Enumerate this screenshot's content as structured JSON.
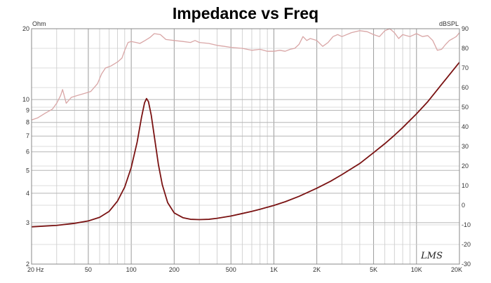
{
  "chart_data": {
    "type": "line",
    "title": "Impedance vs Freq",
    "left_axis": {
      "unit_label": "Ohm",
      "scale": "log",
      "range": [
        2,
        20
      ],
      "ticks": [
        {
          "value": 2,
          "label": "2"
        },
        {
          "value": 3,
          "label": "3"
        },
        {
          "value": 4,
          "label": "4"
        },
        {
          "value": 5,
          "label": "5"
        },
        {
          "value": 6,
          "label": "6"
        },
        {
          "value": 7,
          "label": "7"
        },
        {
          "value": 8,
          "label": "8"
        },
        {
          "value": 9,
          "label": "9"
        },
        {
          "value": 10,
          "label": "10"
        },
        {
          "value": 20,
          "label": "20"
        }
      ]
    },
    "right_axis": {
      "unit_label": "dBSPL",
      "scale": "linear",
      "range": [
        -30,
        90
      ],
      "ticks": [
        {
          "value": -30,
          "label": "-30"
        },
        {
          "value": -20,
          "label": "-20"
        },
        {
          "value": -10,
          "label": "-10"
        },
        {
          "value": 0,
          "label": "0"
        },
        {
          "value": 10,
          "label": "10"
        },
        {
          "value": 20,
          "label": "20"
        },
        {
          "value": 30,
          "label": "30"
        },
        {
          "value": 40,
          "label": "40"
        },
        {
          "value": 50,
          "label": "50"
        },
        {
          "value": 60,
          "label": "60"
        },
        {
          "value": 70,
          "label": "70"
        },
        {
          "value": 80,
          "label": "80"
        },
        {
          "value": 90,
          "label": "90"
        }
      ]
    },
    "x_axis": {
      "scale": "log",
      "range": [
        20,
        20000
      ],
      "ticks": [
        {
          "value": 20,
          "label": "20  Hz"
        },
        {
          "value": 50,
          "label": "50"
        },
        {
          "value": 100,
          "label": "100"
        },
        {
          "value": 200,
          "label": "200"
        },
        {
          "value": 500,
          "label": "500"
        },
        {
          "value": 1000,
          "label": "1K"
        },
        {
          "value": 2000,
          "label": "2K"
        },
        {
          "value": 5000,
          "label": "5K"
        },
        {
          "value": 10000,
          "label": "10K"
        },
        {
          "value": 20000,
          "label": "20K"
        }
      ]
    },
    "grid": true,
    "series": [
      {
        "axis": "left",
        "color": "#7a1212",
        "points": [
          [
            20,
            2.88
          ],
          [
            30,
            2.92
          ],
          [
            40,
            2.98
          ],
          [
            50,
            3.05
          ],
          [
            60,
            3.16
          ],
          [
            70,
            3.35
          ],
          [
            80,
            3.7
          ],
          [
            90,
            4.25
          ],
          [
            100,
            5.15
          ],
          [
            110,
            6.6
          ],
          [
            118,
            8.4
          ],
          [
            124,
            9.7
          ],
          [
            128,
            10.1
          ],
          [
            132,
            9.8
          ],
          [
            138,
            8.6
          ],
          [
            145,
            7.0
          ],
          [
            155,
            5.3
          ],
          [
            165,
            4.35
          ],
          [
            180,
            3.65
          ],
          [
            200,
            3.3
          ],
          [
            230,
            3.15
          ],
          [
            260,
            3.1
          ],
          [
            300,
            3.09
          ],
          [
            350,
            3.1
          ],
          [
            400,
            3.13
          ],
          [
            500,
            3.2
          ],
          [
            600,
            3.28
          ],
          [
            700,
            3.35
          ],
          [
            800,
            3.42
          ],
          [
            1000,
            3.55
          ],
          [
            1200,
            3.68
          ],
          [
            1500,
            3.88
          ],
          [
            2000,
            4.2
          ],
          [
            2500,
            4.5
          ],
          [
            3000,
            4.8
          ],
          [
            4000,
            5.35
          ],
          [
            5000,
            5.95
          ],
          [
            6000,
            6.5
          ],
          [
            7000,
            7.05
          ],
          [
            8000,
            7.6
          ],
          [
            10000,
            8.7
          ],
          [
            12000,
            9.8
          ],
          [
            15000,
            11.6
          ],
          [
            20000,
            14.4
          ]
        ]
      },
      {
        "axis": "right",
        "color": "#d9a6a6",
        "points": [
          [
            20,
            43.5
          ],
          [
            22,
            44.5
          ],
          [
            25,
            47
          ],
          [
            28,
            49
          ],
          [
            30,
            52
          ],
          [
            32,
            56
          ],
          [
            33,
            59
          ],
          [
            35,
            52
          ],
          [
            38,
            55
          ],
          [
            42,
            56
          ],
          [
            47,
            57
          ],
          [
            52,
            58
          ],
          [
            58,
            62
          ],
          [
            62,
            67
          ],
          [
            66,
            70
          ],
          [
            72,
            71
          ],
          [
            80,
            73
          ],
          [
            86,
            75
          ],
          [
            90,
            79
          ],
          [
            95,
            83
          ],
          [
            100,
            83.5
          ],
          [
            108,
            83
          ],
          [
            115,
            82.5
          ],
          [
            125,
            84
          ],
          [
            135,
            85.5
          ],
          [
            145,
            87.5
          ],
          [
            160,
            87
          ],
          [
            175,
            84.5
          ],
          [
            200,
            84
          ],
          [
            230,
            83.5
          ],
          [
            260,
            83
          ],
          [
            280,
            84
          ],
          [
            300,
            83
          ],
          [
            350,
            82.5
          ],
          [
            400,
            81.5
          ],
          [
            450,
            81
          ],
          [
            500,
            80.5
          ],
          [
            600,
            80
          ],
          [
            700,
            79
          ],
          [
            800,
            79.5
          ],
          [
            900,
            78.5
          ],
          [
            1000,
            78.5
          ],
          [
            1100,
            79
          ],
          [
            1200,
            78.5
          ],
          [
            1300,
            79.5
          ],
          [
            1400,
            80
          ],
          [
            1500,
            82
          ],
          [
            1600,
            86
          ],
          [
            1700,
            84
          ],
          [
            1800,
            85
          ],
          [
            2000,
            84
          ],
          [
            2200,
            81
          ],
          [
            2400,
            83
          ],
          [
            2600,
            86
          ],
          [
            2800,
            87
          ],
          [
            3000,
            86
          ],
          [
            3500,
            88
          ],
          [
            4000,
            89
          ],
          [
            4500,
            88.5
          ],
          [
            5000,
            87
          ],
          [
            5500,
            86
          ],
          [
            6000,
            89
          ],
          [
            6500,
            90
          ],
          [
            7000,
            88
          ],
          [
            7500,
            85
          ],
          [
            8000,
            87
          ],
          [
            9000,
            86
          ],
          [
            10000,
            87.5
          ],
          [
            11000,
            86
          ],
          [
            12000,
            86.5
          ],
          [
            13000,
            84
          ],
          [
            14000,
            79
          ],
          [
            15000,
            79.5
          ],
          [
            16000,
            82
          ],
          [
            17000,
            84
          ],
          [
            18000,
            85
          ],
          [
            19000,
            86
          ],
          [
            20000,
            88
          ]
        ]
      }
    ],
    "watermark": "LMS"
  }
}
